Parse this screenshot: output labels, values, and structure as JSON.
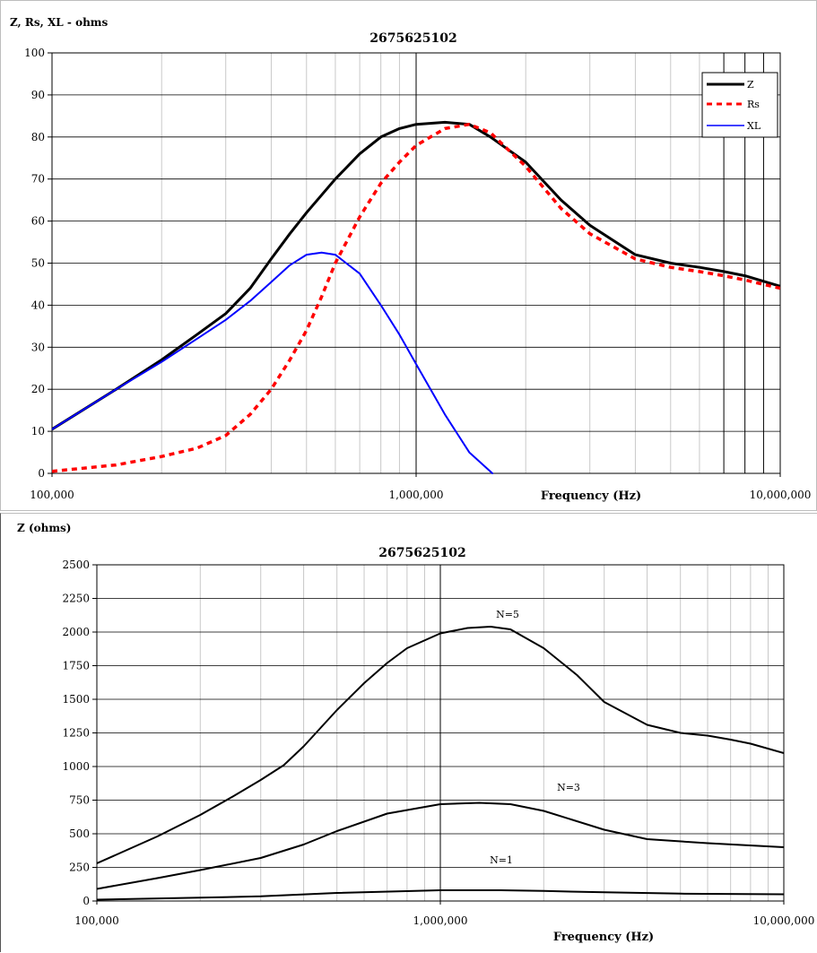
{
  "chart_data": [
    {
      "type": "line",
      "title": "2675625102",
      "ylabel": "Z, Rs, XL - ohms",
      "xlabel": "Frequency (Hz)",
      "xscale": "log",
      "xlim": [
        100000,
        10000000
      ],
      "ylim": [
        0,
        100
      ],
      "yticks": [
        0,
        10,
        20,
        30,
        40,
        50,
        60,
        70,
        80,
        90,
        100
      ],
      "xtick_labels": [
        "100,000",
        "1,000,000",
        "10,000,000"
      ],
      "xtick_values": [
        100000,
        1000000,
        10000000
      ],
      "grid": true,
      "legend": "top-right",
      "series": [
        {
          "name": "Z",
          "color": "#000000",
          "style": "solid-thick",
          "x": [
            100000,
            150000,
            200000,
            250000,
            300000,
            350000,
            400000,
            450000,
            500000,
            600000,
            700000,
            800000,
            900000,
            1000000,
            1200000,
            1400000,
            1600000,
            2000000,
            2500000,
            3000000,
            4000000,
            5000000,
            6000000,
            7000000,
            8000000,
            10000000
          ],
          "y": [
            10.5,
            20,
            27,
            33,
            38,
            44,
            51,
            57,
            62,
            70,
            76,
            80,
            82,
            83,
            83.5,
            83,
            80,
            74,
            65,
            59,
            52,
            50,
            49,
            48,
            47,
            44.5
          ]
        },
        {
          "name": "Rs",
          "color": "#ff0000",
          "style": "dashed",
          "x": [
            100000,
            150000,
            200000,
            250000,
            300000,
            350000,
            400000,
            450000,
            500000,
            550000,
            600000,
            700000,
            800000,
            900000,
            1000000,
            1200000,
            1400000,
            1600000,
            2000000,
            2500000,
            3000000,
            4000000,
            5000000,
            6000000,
            7000000,
            8000000,
            10000000
          ],
          "y": [
            0.5,
            2,
            4,
            6,
            9,
            14,
            20,
            27,
            34,
            42,
            50,
            61,
            69,
            74,
            78,
            82,
            83,
            81,
            73,
            63,
            57,
            51,
            49,
            48,
            47,
            46,
            44
          ]
        },
        {
          "name": "XL",
          "color": "#0000ff",
          "style": "solid",
          "x": [
            100000,
            150000,
            200000,
            250000,
            300000,
            350000,
            400000,
            450000,
            500000,
            550000,
            600000,
            700000,
            800000,
            900000,
            1000000,
            1200000,
            1400000,
            1620000
          ],
          "y": [
            10.5,
            20,
            26.5,
            32,
            36.5,
            41,
            45.5,
            49.5,
            52,
            52.5,
            52,
            47.5,
            40,
            33,
            26,
            14,
            5,
            0
          ]
        }
      ]
    },
    {
      "type": "line",
      "title": "2675625102",
      "ylabel": "Z (ohms)",
      "xlabel": "Frequency (Hz)",
      "xscale": "log",
      "xlim": [
        100000,
        10000000
      ],
      "ylim": [
        0,
        2500
      ],
      "yticks": [
        0,
        250,
        500,
        750,
        1000,
        1250,
        1500,
        1750,
        2000,
        2250,
        2500
      ],
      "xtick_labels": [
        "100,000",
        "1,000,000",
        "10,000,000"
      ],
      "xtick_values": [
        100000,
        1000000,
        10000000
      ],
      "grid": true,
      "series": [
        {
          "name": "N=5",
          "color": "#000000",
          "x": [
            100000,
            150000,
            200000,
            250000,
            300000,
            350000,
            400000,
            500000,
            600000,
            700000,
            800000,
            1000000,
            1200000,
            1400000,
            1600000,
            2000000,
            2500000,
            3000000,
            4000000,
            5000000,
            6000000,
            7000000,
            8000000,
            10000000
          ],
          "y": [
            280,
            480,
            640,
            780,
            900,
            1010,
            1150,
            1420,
            1620,
            1770,
            1880,
            1990,
            2030,
            2040,
            2020,
            1880,
            1680,
            1480,
            1310,
            1250,
            1230,
            1200,
            1170,
            1100
          ]
        },
        {
          "name": "N=3",
          "color": "#000000",
          "x": [
            100000,
            150000,
            200000,
            300000,
            400000,
            500000,
            700000,
            1000000,
            1300000,
            1600000,
            2000000,
            3000000,
            4000000,
            6000000,
            10000000
          ],
          "y": [
            90,
            170,
            230,
            320,
            420,
            520,
            650,
            720,
            730,
            720,
            670,
            530,
            460,
            430,
            400
          ]
        },
        {
          "name": "N=1",
          "color": "#000000",
          "x": [
            100000,
            200000,
            300000,
            500000,
            1000000,
            1500000,
            2000000,
            3000000,
            5000000,
            10000000
          ],
          "y": [
            10,
            25,
            35,
            60,
            80,
            80,
            75,
            65,
            55,
            50
          ]
        }
      ]
    }
  ]
}
